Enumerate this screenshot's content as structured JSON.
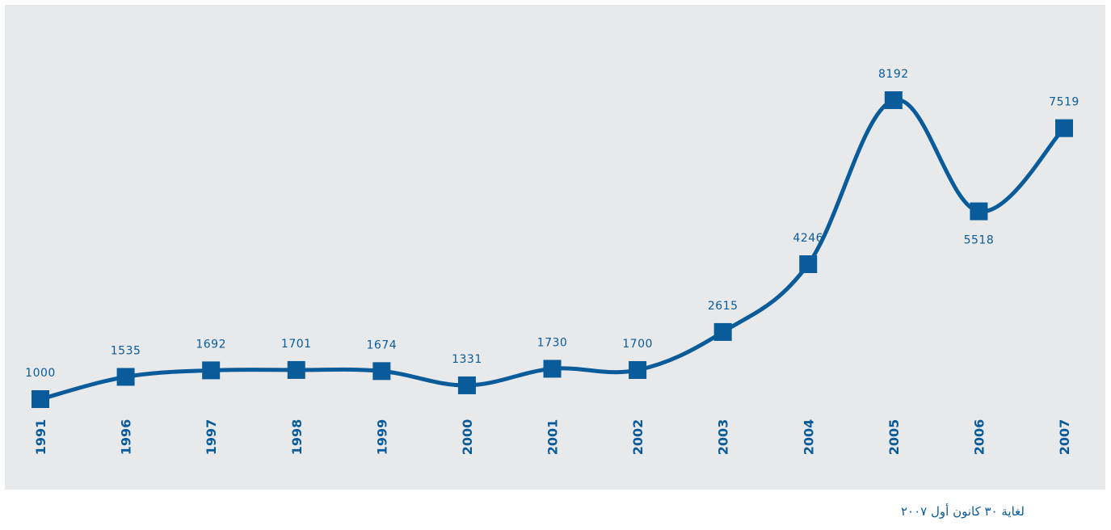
{
  "chart_data": {
    "type": "line",
    "categories": [
      "1991",
      "1996",
      "1997",
      "1998",
      "1999",
      "2000",
      "2001",
      "2002",
      "2003",
      "2004",
      "2005",
      "2006",
      "2007"
    ],
    "values": [
      1000,
      1535,
      1692,
      1701,
      1674,
      1331,
      1730,
      1700,
      2615,
      4246,
      8192,
      5518,
      7519
    ],
    "title": "",
    "xlabel": "",
    "ylabel": "",
    "grid": false,
    "legend": "none",
    "marker": "square",
    "smooth": true,
    "colors": {
      "line": "#0a5b9a",
      "background": "#e8e9eb"
    }
  },
  "footnote": "لغاية ٣٠ كانون أول ٢٠٠٧"
}
